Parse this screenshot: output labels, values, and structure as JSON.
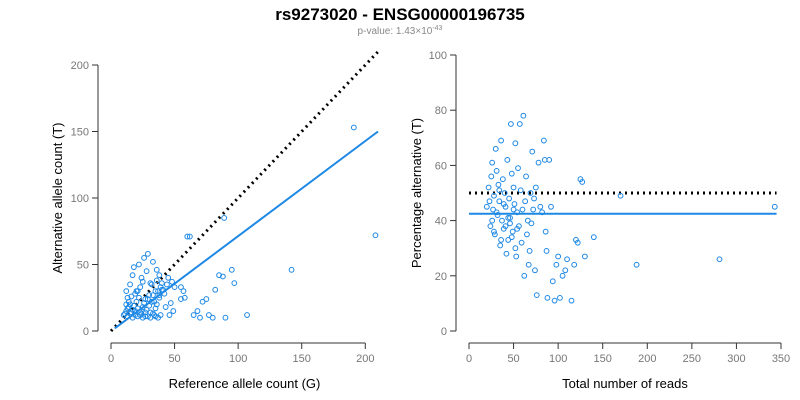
{
  "title": "rs9273020 - ENSG00000196735",
  "subtitle": {
    "prefix": "p-value: 1.43×10",
    "exponent": "-43"
  },
  "colors": {
    "points": "#1e88e5",
    "fit_line": "#1e88e5",
    "reference_line": "#000000"
  },
  "chart_data": [
    {
      "type": "scatter",
      "xlabel": "Reference allele count (G)",
      "ylabel": "Alternative allele count (T)",
      "xlim": [
        0,
        210
      ],
      "ylim": [
        0,
        200
      ],
      "xticks": [
        0,
        50,
        100,
        150,
        200
      ],
      "yticks": [
        0,
        50,
        100,
        150,
        200
      ],
      "grid": false,
      "reference_line": {
        "style": "dotted",
        "x": [
          0,
          210
        ],
        "y": [
          0,
          210
        ]
      },
      "fit_line": {
        "style": "solid",
        "x": [
          3,
          210
        ],
        "y": [
          2,
          150
        ]
      },
      "points": [
        [
          10,
          12
        ],
        [
          11,
          13
        ],
        [
          12,
          15
        ],
        [
          13,
          11
        ],
        [
          14,
          18
        ],
        [
          15,
          20
        ],
        [
          16,
          14
        ],
        [
          17,
          16
        ],
        [
          18,
          19
        ],
        [
          19,
          12
        ],
        [
          20,
          22
        ],
        [
          21,
          17
        ],
        [
          22,
          25
        ],
        [
          23,
          14
        ],
        [
          24,
          13
        ],
        [
          25,
          18
        ],
        [
          26,
          21
        ],
        [
          27,
          11
        ],
        [
          28,
          16
        ],
        [
          29,
          24
        ],
        [
          30,
          19
        ],
        [
          31,
          14
        ],
        [
          32,
          22
        ],
        [
          33,
          27
        ],
        [
          34,
          12
        ],
        [
          35,
          17
        ],
        [
          36,
          20
        ],
        [
          37,
          30
        ],
        [
          38,
          25
        ],
        [
          39,
          33
        ],
        [
          40,
          36
        ],
        [
          41,
          31
        ],
        [
          42,
          28
        ],
        [
          43,
          18
        ],
        [
          44,
          35
        ],
        [
          45,
          40
        ],
        [
          46,
          12
        ],
        [
          47,
          21
        ],
        [
          48,
          37
        ],
        [
          50,
          33
        ],
        [
          12,
          30
        ],
        [
          13,
          25
        ],
        [
          15,
          35
        ],
        [
          17,
          42
        ],
        [
          18,
          48
        ],
        [
          20,
          30
        ],
        [
          22,
          50
        ],
        [
          24,
          40
        ],
        [
          26,
          55
        ],
        [
          28,
          45
        ],
        [
          29,
          58
        ],
        [
          31,
          36
        ],
        [
          33,
          52
        ],
        [
          35,
          30
        ],
        [
          36,
          46
        ],
        [
          38,
          27
        ],
        [
          12,
          20
        ],
        [
          14,
          22
        ],
        [
          16,
          26
        ],
        [
          19,
          28
        ],
        [
          21,
          30
        ],
        [
          23,
          33
        ],
        [
          25,
          37
        ],
        [
          27,
          24
        ],
        [
          30,
          27
        ],
        [
          32,
          35
        ],
        [
          34,
          22
        ],
        [
          36,
          38
        ],
        [
          38,
          42
        ],
        [
          40,
          31
        ],
        [
          13,
          17
        ],
        [
          15,
          13
        ],
        [
          17,
          10
        ],
        [
          19,
          15
        ],
        [
          21,
          11
        ],
        [
          23,
          12
        ],
        [
          25,
          10
        ],
        [
          27,
          14
        ],
        [
          29,
          11
        ],
        [
          31,
          10
        ],
        [
          33,
          13
        ],
        [
          35,
          11
        ],
        [
          37,
          10
        ],
        [
          39,
          12
        ],
        [
          49,
          15
        ],
        [
          55,
          33
        ],
        [
          57,
          30
        ],
        [
          60,
          71
        ],
        [
          62,
          71
        ],
        [
          55,
          24
        ],
        [
          58,
          25
        ],
        [
          65,
          12
        ],
        [
          68,
          15
        ],
        [
          70,
          10
        ],
        [
          72,
          22
        ],
        [
          75,
          24
        ],
        [
          77,
          12
        ],
        [
          80,
          10
        ],
        [
          82,
          31
        ],
        [
          85,
          42
        ],
        [
          88,
          41
        ],
        [
          89,
          85
        ],
        [
          90,
          10
        ],
        [
          95,
          46
        ],
        [
          97,
          36
        ],
        [
          107,
          12
        ],
        [
          142,
          46
        ],
        [
          191,
          153
        ],
        [
          208,
          72
        ]
      ]
    },
    {
      "type": "scatter",
      "xlabel": "Total number of reads",
      "ylabel": "Percentage alternative (T)",
      "xlim": [
        0,
        350
      ],
      "ylim": [
        0,
        100
      ],
      "xticks": [
        0,
        50,
        100,
        150,
        200,
        250,
        300,
        350
      ],
      "yticks": [
        0,
        20,
        40,
        60,
        80,
        100
      ],
      "grid": false,
      "reference_line": {
        "style": "dotted",
        "x": [
          0,
          345
        ],
        "y": [
          50,
          50
        ]
      },
      "fit_line": {
        "style": "solid",
        "x": [
          0,
          345
        ],
        "y": [
          42.5,
          42.5
        ]
      },
      "points": [
        [
          20,
          45
        ],
        [
          22,
          52
        ],
        [
          24,
          38
        ],
        [
          25,
          56
        ],
        [
          26,
          61
        ],
        [
          27,
          44
        ],
        [
          28,
          49
        ],
        [
          29,
          35
        ],
        [
          30,
          66
        ],
        [
          31,
          58
        ],
        [
          32,
          42
        ],
        [
          33,
          53
        ],
        [
          34,
          47
        ],
        [
          35,
          31
        ],
        [
          36,
          69
        ],
        [
          37,
          40
        ],
        [
          38,
          55
        ],
        [
          39,
          37
        ],
        [
          40,
          50
        ],
        [
          41,
          45
        ],
        [
          42,
          28
        ],
        [
          43,
          62
        ],
        [
          44,
          33
        ],
        [
          45,
          48
        ],
        [
          46,
          41
        ],
        [
          47,
          75
        ],
        [
          48,
          57
        ],
        [
          49,
          36
        ],
        [
          50,
          52
        ],
        [
          51,
          46
        ],
        [
          52,
          68
        ],
        [
          53,
          27
        ],
        [
          54,
          43
        ],
        [
          55,
          59
        ],
        [
          56,
          38
        ],
        [
          57,
          75
        ],
        [
          58,
          51
        ],
        [
          59,
          32
        ],
        [
          60,
          44
        ],
        [
          61,
          78
        ],
        [
          62,
          20
        ],
        [
          63,
          47
        ],
        [
          64,
          56
        ],
        [
          65,
          35
        ],
        [
          66,
          40
        ],
        [
          67,
          24
        ],
        [
          68,
          29
        ],
        [
          69,
          50
        ],
        [
          70,
          39
        ],
        [
          71,
          65
        ],
        [
          72,
          44
        ],
        [
          73,
          48
        ],
        [
          74,
          22
        ],
        [
          75,
          52
        ],
        [
          76,
          13
        ],
        [
          78,
          61
        ],
        [
          80,
          45
        ],
        [
          82,
          43
        ],
        [
          84,
          69
        ],
        [
          85,
          62
        ],
        [
          86,
          36
        ],
        [
          87,
          29
        ],
        [
          88,
          12
        ],
        [
          90,
          62
        ],
        [
          92,
          45
        ],
        [
          94,
          18
        ],
        [
          96,
          11
        ],
        [
          98,
          24
        ],
        [
          100,
          27
        ],
        [
          102,
          12
        ],
        [
          105,
          20
        ],
        [
          108,
          22
        ],
        [
          110,
          26
        ],
        [
          115,
          11
        ],
        [
          118,
          24
        ],
        [
          120,
          33
        ],
        [
          122,
          32
        ],
        [
          125,
          55
        ],
        [
          127,
          54
        ],
        [
          130,
          27
        ],
        [
          140,
          34
        ],
        [
          170,
          49
        ],
        [
          188,
          24
        ],
        [
          281,
          26
        ],
        [
          343,
          45
        ],
        [
          23,
          47
        ],
        [
          26,
          40
        ],
        [
          28,
          36
        ],
        [
          31,
          43
        ],
        [
          34,
          51
        ],
        [
          36,
          33
        ],
        [
          39,
          46
        ],
        [
          41,
          38
        ],
        [
          44,
          41
        ],
        [
          46,
          39
        ],
        [
          48,
          34
        ],
        [
          50,
          44
        ],
        [
          52,
          30
        ],
        [
          54,
          37
        ]
      ]
    }
  ]
}
